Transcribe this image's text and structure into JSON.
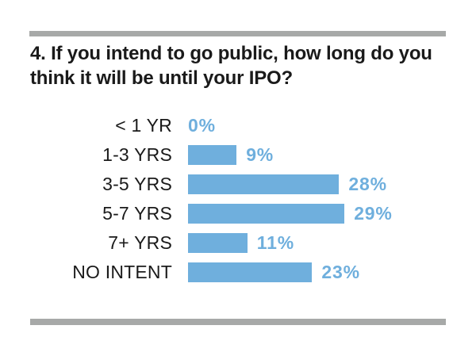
{
  "page": {
    "background_color": "#ffffff",
    "rule_color": "#a7a9a8",
    "text_color": "#1a1a1a",
    "accent_color": "#6fafdd"
  },
  "title": {
    "line1": "4. If you intend to go public, how long do you",
    "line2": "think it will be until your IPO?"
  },
  "chart_data": {
    "type": "bar",
    "orientation": "horizontal",
    "title": "4. If you intend to go public, how long do you think it will be until your IPO?",
    "categories": [
      "< 1 YR",
      "1-3 YRS",
      "3-5 YRS",
      "5-7 YRS",
      "7+ YRS",
      "NO INTENT"
    ],
    "values": [
      0,
      9,
      28,
      29,
      11,
      23
    ],
    "value_labels": [
      "0%",
      "9%",
      "28%",
      "29%",
      "11%",
      "23%"
    ],
    "unit": "percent",
    "xlabel": "",
    "ylabel": "",
    "axis_shown": false,
    "grid": false,
    "legend": false,
    "bar_color": "#6fafdd",
    "value_label_color": "#6fafdd",
    "category_label_color": "#1a1a1a"
  }
}
